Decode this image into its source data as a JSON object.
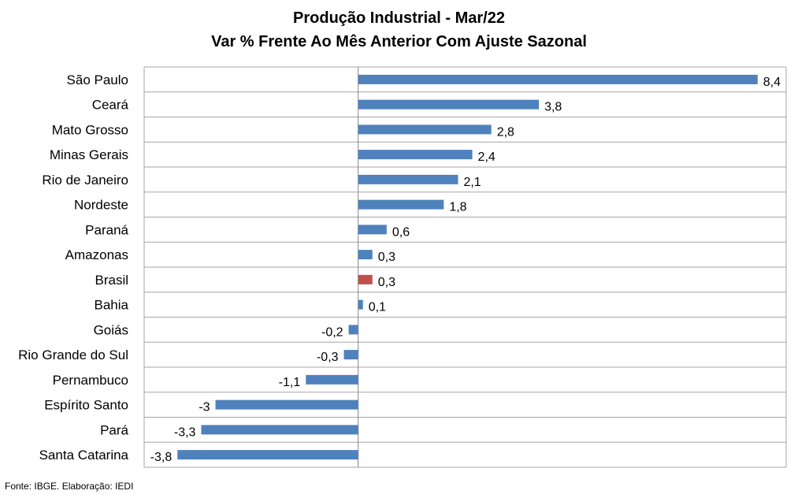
{
  "chart_data": {
    "type": "bar",
    "orientation": "horizontal",
    "title": "Produção Industrial - Mar/22",
    "subtitle": "Var % Frente Ao Mês Anterior Com Ajuste Sazonal",
    "categories": [
      "São Paulo",
      "Ceará",
      "Mato Grosso",
      "Minas Gerais",
      "Rio de Janeiro",
      "Nordeste",
      "Paraná",
      "Amazonas",
      "Brasil",
      "Bahia",
      "Goiás",
      "Rio Grande do Sul",
      "Pernambuco",
      "Espírito Santo",
      "Pará",
      "Santa Catarina"
    ],
    "values": [
      8.4,
      3.8,
      2.8,
      2.4,
      2.1,
      1.8,
      0.6,
      0.3,
      0.3,
      0.1,
      -0.2,
      -0.3,
      -1.1,
      -3,
      -3.3,
      -3.8
    ],
    "value_labels": [
      "8,4",
      "3,8",
      "2,8",
      "2,4",
      "2,1",
      "1,8",
      "0,6",
      "0,3",
      "0,3",
      "0,1",
      "-0,2",
      "-0,3",
      "-1,1",
      "-3",
      "-3,3",
      "-3,8"
    ],
    "highlight_category": "Brasil",
    "xlim": [
      -4.5,
      9.0
    ],
    "grid": true,
    "legend": "none",
    "colors": {
      "bar": "#4f81bd",
      "highlight": "#c0504d",
      "grid": "#a6a6a6"
    }
  },
  "source_note": "Fonte: IBGE. Elaboração: IEDI"
}
